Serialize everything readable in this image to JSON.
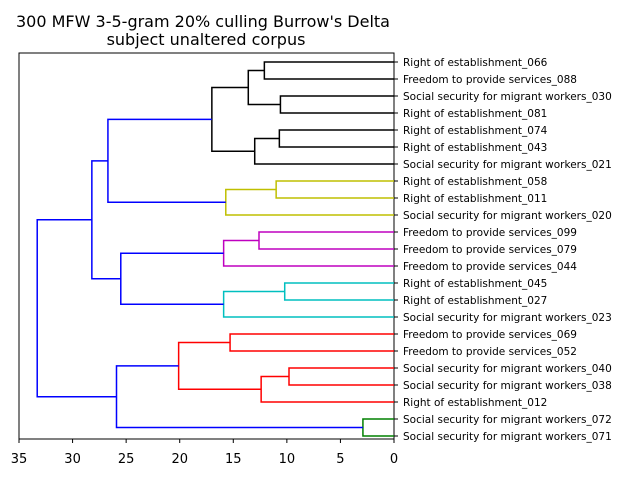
{
  "chart_data": {
    "type": "dendrogram",
    "title_line1": "300 MFW 3-5-gram 20% culling Burrow's Delta",
    "title_line2": "subject unaltered corpus",
    "xlim": [
      35,
      0
    ],
    "xticks": [
      35,
      30,
      25,
      20,
      15,
      10,
      5,
      0
    ],
    "orientation": "leaves-right",
    "leaves": [
      "Right of establishment_066",
      "Freedom to provide services_088",
      "Social security for migrant workers_030",
      "Right of establishment_081",
      "Right of establishment_074",
      "Right of establishment_043",
      "Social security for migrant workers_021",
      "Right of establishment_058",
      "Right of establishment_011",
      "Social security for migrant workers_020",
      "Freedom to provide services_099",
      "Freedom to provide services_079",
      "Freedom to provide services_044",
      "Right of establishment_045",
      "Right of establishment_027",
      "Social security for migrant workers_023",
      "Freedom to provide services_069",
      "Freedom to provide services_052",
      "Social security for migrant workers_040",
      "Social security for migrant workers_038",
      "Right of establishment_012",
      "Social security for migrant workers_072",
      "Social security for migrant workers_071"
    ],
    "merges": [
      {
        "id": "m1",
        "left": 0,
        "right": 1,
        "height": 12.1,
        "color": "#000000"
      },
      {
        "id": "m2",
        "left": 2,
        "right": 3,
        "height": 10.6,
        "color": "#000000"
      },
      {
        "id": "m3",
        "left": "m1",
        "right": "m2",
        "height": 13.6,
        "color": "#000000"
      },
      {
        "id": "m4",
        "left": 4,
        "right": 5,
        "height": 10.7,
        "color": "#000000"
      },
      {
        "id": "m5",
        "left": "m4",
        "right": 6,
        "height": 13.0,
        "color": "#000000"
      },
      {
        "id": "m6",
        "left": "m3",
        "right": "m5",
        "height": 17.0,
        "color": "#000000"
      },
      {
        "id": "m7",
        "left": 7,
        "right": 8,
        "height": 11.0,
        "color": "#bfbf00"
      },
      {
        "id": "m8",
        "left": "m7",
        "right": 9,
        "height": 15.7,
        "color": "#bfbf00"
      },
      {
        "id": "m9",
        "left": "m6",
        "right": "m8",
        "height": 26.7,
        "color": "#0000ff"
      },
      {
        "id": "m10",
        "left": 10,
        "right": 11,
        "height": 12.6,
        "color": "#bf00bf"
      },
      {
        "id": "m11",
        "left": "m10",
        "right": 12,
        "height": 15.9,
        "color": "#bf00bf"
      },
      {
        "id": "m12",
        "left": 13,
        "right": 14,
        "height": 10.2,
        "color": "#00bfbf"
      },
      {
        "id": "m13",
        "left": "m12",
        "right": 15,
        "height": 15.9,
        "color": "#00bfbf"
      },
      {
        "id": "m14",
        "left": "m11",
        "right": "m13",
        "height": 25.5,
        "color": "#0000ff"
      },
      {
        "id": "m15",
        "left": "m9",
        "right": "m14",
        "height": 28.2,
        "color": "#0000ff"
      },
      {
        "id": "m16",
        "left": 16,
        "right": 17,
        "height": 15.3,
        "color": "#ff0000"
      },
      {
        "id": "m17",
        "left": 18,
        "right": 19,
        "height": 9.8,
        "color": "#ff0000"
      },
      {
        "id": "m18",
        "left": "m17",
        "right": 20,
        "height": 12.4,
        "color": "#ff0000"
      },
      {
        "id": "m19",
        "left": "m16",
        "right": "m18",
        "height": 20.1,
        "color": "#ff0000"
      },
      {
        "id": "m20",
        "left": 21,
        "right": 22,
        "height": 2.9,
        "color": "#008000"
      },
      {
        "id": "m21",
        "left": "m19",
        "right": "m20",
        "height": 25.9,
        "color": "#0000ff"
      },
      {
        "id": "m22",
        "left": "m15",
        "right": "m21",
        "height": 33.3,
        "color": "#0000ff"
      }
    ]
  }
}
